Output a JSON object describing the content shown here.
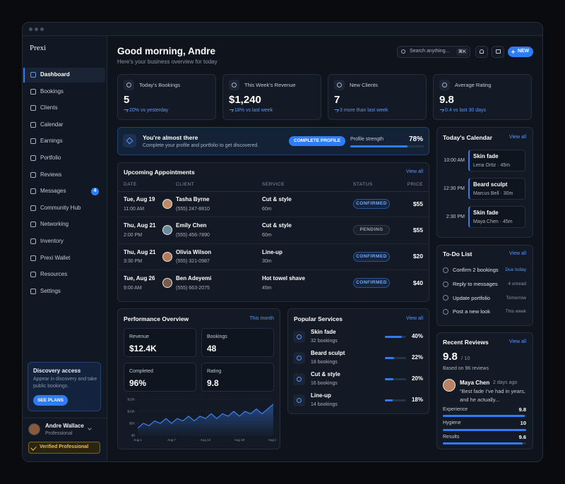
{
  "window": {
    "brand": "Prexi"
  },
  "sidebar": {
    "nav": [
      {
        "label": "Dashboard",
        "active": true
      },
      {
        "label": "Bookings"
      },
      {
        "label": "Clients"
      },
      {
        "label": "Calendar"
      },
      {
        "label": "Earnings"
      },
      {
        "label": "Portfolio"
      },
      {
        "label": "Reviews"
      },
      {
        "label": "Messages",
        "badge": "4"
      },
      {
        "label": "Community Hub"
      },
      {
        "label": "Networking"
      },
      {
        "label": "Inventory"
      },
      {
        "label": "Prexi Wallet"
      },
      {
        "label": "Resources"
      },
      {
        "label": "Settings"
      }
    ],
    "promo": {
      "title": "Discovery access",
      "text": "Appear in discovery and take public bookings.",
      "button": "SEE PLANS"
    },
    "user": {
      "name": "Andre Wallace",
      "role": "Professional",
      "badge": "Verified Professional"
    }
  },
  "header": {
    "title": "Good morning, Andre",
    "subtitle": "Here's your business overview for today",
    "search": "Search anything...",
    "shortcut": "⌘K",
    "new_button": "NEW"
  },
  "stats": [
    {
      "label": "Today's Bookings",
      "value": "5",
      "change": "20% vs yesterday"
    },
    {
      "label": "This Week's Revenue",
      "value": "$1,240",
      "change": "18% vs last week"
    },
    {
      "label": "New Clients",
      "value": "7",
      "change": "3 more than last week"
    },
    {
      "label": "Average Rating",
      "value": "9.8",
      "change": "0.4 vs last 30 days"
    }
  ],
  "banner": {
    "title": "You're almost there",
    "text": "Complete your profile and portfolio to get discovered.",
    "button": "COMPLETE PROFILE",
    "strength_title": "Profile strength",
    "strength": 78,
    "strength_label": "78%"
  },
  "appointments": {
    "title": "Upcoming Appointments",
    "link": "View all",
    "columns": [
      "DATE",
      "CLIENT",
      "SERVICE",
      "STATUS",
      "PRICE"
    ],
    "rows": [
      {
        "date": "Tue, Aug 19",
        "time": "11:00 AM",
        "client": "Tasha Byrne",
        "phone": "(555) 247-8810",
        "service": "Cut & style",
        "duration": "60m",
        "status": "CONFIRMED",
        "tone": "blue",
        "price": "$55"
      },
      {
        "date": "Thu, Aug 21",
        "time": "2:00 PM",
        "client": "Emily Chen",
        "phone": "(555) 456-7890",
        "service": "Cut & style",
        "duration": "60m",
        "status": "PENDING",
        "tone": "gray",
        "price": "$55"
      },
      {
        "date": "Thu, Aug 21",
        "time": "3:30 PM",
        "client": "Olivia Wilson",
        "phone": "(555) 321-0987",
        "service": "Line-up",
        "duration": "30m",
        "status": "CONFIRMED",
        "tone": "blue",
        "price": "$20"
      },
      {
        "date": "Tue, Aug 26",
        "time": "9:00 AM",
        "client": "Ben Adeyemi",
        "phone": "(555) 663-2075",
        "service": "Hot towel shave",
        "duration": "45m",
        "status": "CONFIRMED",
        "tone": "blue",
        "price": "$40"
      }
    ]
  },
  "performance": {
    "title": "Performance Overview",
    "period": "This month",
    "metrics": [
      {
        "label": "Revenue",
        "value": "$12.4K"
      },
      {
        "label": "Bookings",
        "value": "48"
      },
      {
        "label": "Completed",
        "value": "96%"
      },
      {
        "label": "Rating",
        "value": "9.8"
      }
    ],
    "chart_data": {
      "type": "line",
      "categories": [
        "Aug 1",
        null,
        null,
        null,
        null,
        null,
        "Aug 7",
        null,
        null,
        null,
        null,
        null,
        "Aug 13",
        null,
        null,
        null,
        null,
        null,
        "Aug 19",
        null,
        null,
        null,
        null,
        null,
        "Aug 25"
      ],
      "values": [
        3,
        5,
        4,
        6,
        5,
        7,
        5,
        7,
        6,
        8,
        6,
        8,
        7,
        9,
        7,
        9,
        8,
        10,
        8,
        10,
        9,
        11,
        9,
        11,
        13
      ],
      "color": "#3b82f6",
      "ylim": [
        0,
        15
      ],
      "yticks": [
        {
          "value": 0,
          "label": "$0"
        },
        {
          "value": 5,
          "label": "$5K"
        },
        {
          "value": 10,
          "label": "$10K"
        },
        {
          "value": 15,
          "label": "$15K"
        }
      ],
      "grid": true
    }
  },
  "services": {
    "title": "Popular Services",
    "link": "View all",
    "items": [
      {
        "name": "Skin fade",
        "count": "32 bookings",
        "share": 40,
        "share_label": "40%"
      },
      {
        "name": "Beard sculpt",
        "count": "18 bookings",
        "share": 22,
        "share_label": "22%"
      },
      {
        "name": "Cut & style",
        "count": "16 bookings",
        "share": 20,
        "share_label": "20%"
      },
      {
        "name": "Line-up",
        "count": "14 bookings",
        "share": 18,
        "share_label": "18%"
      }
    ]
  },
  "calendar": {
    "title": "Today's Calendar",
    "link": "View all",
    "events": [
      {
        "time": "10:00 AM",
        "title": "Skin fade",
        "detail": "Lena Ortiz · 45m"
      },
      {
        "time": "12:30 PM",
        "title": "Beard sculpt",
        "detail": "Marcus Bell · 30m"
      },
      {
        "time": "2:30 PM",
        "title": "Skin fade",
        "detail": "Maya Chen · 45m"
      }
    ]
  },
  "todo": {
    "title": "To-Do List",
    "link": "View all",
    "items": [
      {
        "task": "Confirm 2 bookings",
        "meta": "Due today",
        "tone": "blue"
      },
      {
        "task": "Reply to messages",
        "meta": "4 unread",
        "tone": "gray"
      },
      {
        "task": "Update portfolio",
        "meta": "Tomorrow",
        "tone": "gray"
      },
      {
        "task": "Post a new look",
        "meta": "This week",
        "tone": "gray"
      }
    ]
  },
  "reviews": {
    "title": "Recent Reviews",
    "link": "View all",
    "rating": "9.8",
    "scale": 10,
    "scale_label": "/ 10",
    "based": "Based on 96 reviews",
    "review": {
      "name": "Maya Chen",
      "ago": "2 days ago",
      "text": "“Best fade I’ve had in years, and he actually..."
    },
    "scores": [
      {
        "label": "Experience",
        "value": 9.8
      },
      {
        "label": "Hygiene",
        "value": 10
      },
      {
        "label": "Results",
        "value": 9.6
      }
    ]
  }
}
